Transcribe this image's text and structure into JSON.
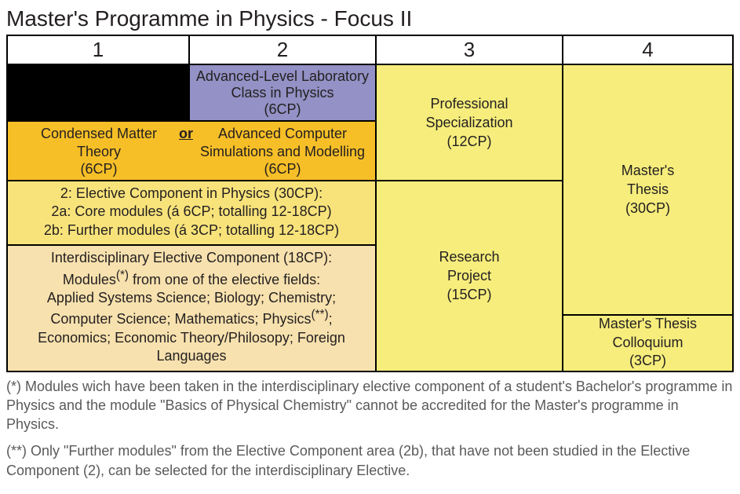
{
  "title": "Master's Programme in Physics - Focus II",
  "semesters": [
    "1",
    "2",
    "3",
    "4"
  ],
  "colors": {
    "lab": "#9391c5",
    "orRow": "#f7bf27",
    "elective": "#f8e37b",
    "inter": "#f7e1ae",
    "right": "#f6ed7c",
    "black": "#000000",
    "border": "#000000",
    "white": "#ffffff",
    "footnote": "#5a5a5a"
  },
  "lab": {
    "line1": "Advanced-Level Laboratory",
    "line2": "Class in Physics",
    "line3": "(6CP)"
  },
  "orRow": {
    "left": {
      "line1": "Condensed Matter",
      "line2": "Theory",
      "line3": "(6CP)"
    },
    "or": "or",
    "right": {
      "line1": "Advanced Computer",
      "line2": "Simulations and Modelling",
      "line3": "(6CP)"
    }
  },
  "elective": {
    "line1": "2: Elective Component in Physics (30CP):",
    "line2": "2a: Core modules (á 6CP; totalling 12-18CP)",
    "line3": "2b: Further modules (á 3CP; totalling 12-18CP)"
  },
  "inter": {
    "line1": "Interdisciplinary Elective Component (18CP):",
    "line2_pre": "Modules",
    "line2_sup": "(*)",
    "line2_post": " from one of the elective fields:",
    "line3": "Applied Systems Science; Biology; Chemistry;",
    "line4_pre": "Computer Science; Mathematics; Physics",
    "line4_sup": "(**)",
    "line4_post": ";",
    "line5": "Economics; Economic Theory/Philosopy; Foreign",
    "line6": "Languages"
  },
  "prof": {
    "line1": "Professional",
    "line2": "Specialization",
    "line3": "(12CP)"
  },
  "research": {
    "line1": "Research",
    "line2": "Project",
    "line3": "(15CP)"
  },
  "thesis": {
    "line1": "Master's",
    "line2": "Thesis",
    "line3": "(30CP)"
  },
  "colloq": {
    "line1": "Master's Thesis",
    "line2": "Colloquium",
    "line3": "(3CP)"
  },
  "footnotes": {
    "fn1": "(*) Modules wich have been taken in the interdisciplinary elective component of a student's Bachelor's programme in Physics and the module \"Basics of Physical Chemistry\" cannot be accredited for the Master's programme in Physics.",
    "fn2": "(**) Only \"Further modules\" from the Elective Component area (2b), that have not been studied in the Elective Component (2), can be selected for the interdisciplinary Elective."
  }
}
